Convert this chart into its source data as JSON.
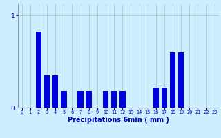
{
  "categories": [
    "0",
    "1",
    "2",
    "3",
    "4",
    "5",
    "6",
    "7",
    "8",
    "9",
    "10",
    "11",
    "12",
    "13",
    "14",
    "15",
    "16",
    "17",
    "18",
    "19",
    "20",
    "21",
    "22",
    "23"
  ],
  "values": [
    0,
    0,
    0.82,
    0.35,
    0.35,
    0.18,
    0,
    0.18,
    0.18,
    0,
    0.18,
    0.18,
    0.18,
    0,
    0,
    0,
    0.22,
    0.22,
    0.6,
    0.6,
    0,
    0,
    0,
    0
  ],
  "bar_color": "#0000dd",
  "background_color": "#cceeff",
  "grid_color": "#aacccc",
  "text_color": "#0000bb",
  "xlabel": "Précipitations 6min ( mm )",
  "ylim": [
    0,
    1.12
  ],
  "yticks": [
    0,
    1
  ],
  "xlabel_fontsize": 7.0,
  "xtick_fontsize": 4.8,
  "ytick_fontsize": 6.5
}
